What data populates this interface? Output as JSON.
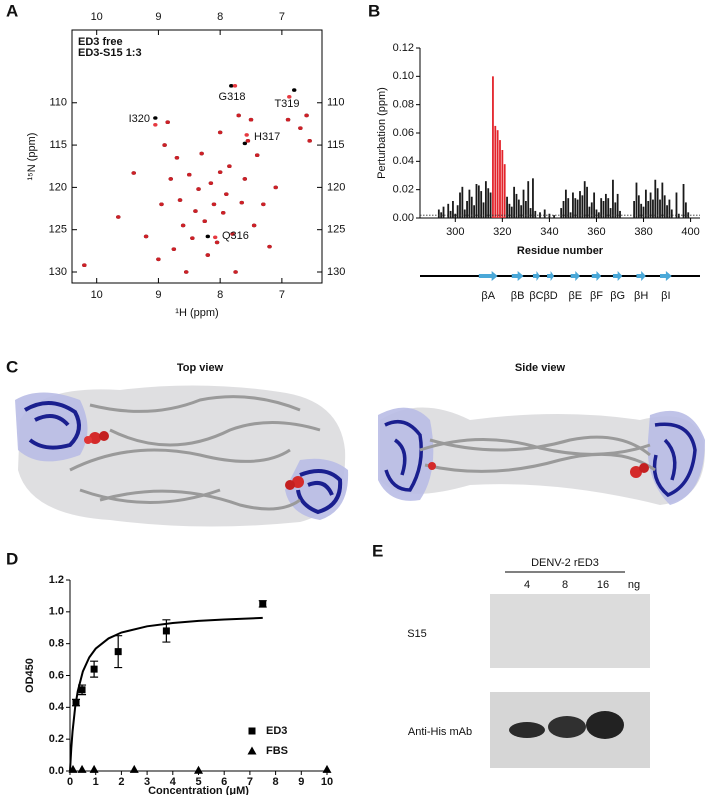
{
  "panel_labels": [
    "A",
    "B",
    "C",
    "D",
    "E"
  ],
  "chart_data": [
    {
      "type": "scatter",
      "xlabel": "¹H (ppm)",
      "ylabel": "¹⁵N (ppm)",
      "xlim": [
        10.4,
        6.35
      ],
      "ylim": [
        131.3,
        101.4
      ],
      "xticks": [
        10,
        9,
        8,
        7
      ],
      "yticks": [
        110,
        115,
        120,
        125,
        130
      ],
      "series": [
        {
          "name": "ED3 free",
          "color": "#000000",
          "x": [
            10.2,
            9.65,
            9.4,
            9.2,
            9.0,
            8.95,
            8.85,
            8.8,
            8.75,
            8.7,
            8.65,
            8.6,
            8.55,
            8.5,
            8.45,
            8.4,
            8.35,
            8.3,
            8.25,
            8.2,
            8.15,
            8.1,
            8.05,
            8.0,
            7.95,
            7.9,
            7.85,
            7.82,
            7.8,
            7.75,
            7.7,
            7.65,
            7.6,
            7.55,
            7.5,
            7.45,
            7.4,
            7.3,
            7.2,
            7.1,
            6.9,
            6.8,
            6.7,
            6.6,
            6.55,
            9.05,
            8.9,
            8.2,
            7.6,
            8.0
          ],
          "values": [
            129.2,
            123.5,
            118.3,
            125.8,
            128.5,
            122.0,
            112.3,
            119.0,
            127.3,
            116.5,
            121.5,
            124.5,
            130.0,
            118.5,
            126.0,
            122.8,
            120.2,
            116.0,
            124.0,
            128.0,
            119.5,
            122.0,
            126.5,
            118.2,
            123.0,
            120.8,
            117.5,
            108.0,
            125.5,
            130.0,
            111.5,
            121.8,
            119.0,
            114.5,
            112.0,
            124.5,
            116.2,
            122.0,
            127.0,
            120.0,
            112.0,
            108.5,
            113.0,
            111.5,
            114.5,
            111.8,
            115.0,
            125.8,
            114.8,
            113.5
          ]
        },
        {
          "name": "ED3-S15 1:3",
          "color": "#e3242b",
          "x": [
            10.2,
            9.65,
            9.4,
            9.2,
            9.0,
            8.95,
            8.85,
            8.8,
            8.75,
            8.7,
            8.65,
            8.6,
            8.55,
            8.5,
            8.45,
            8.4,
            8.35,
            8.3,
            8.25,
            8.2,
            8.15,
            8.1,
            8.05,
            8.0,
            7.95,
            7.9,
            7.85,
            7.76,
            7.8,
            7.75,
            7.7,
            7.65,
            7.6,
            7.55,
            7.5,
            7.45,
            7.4,
            7.3,
            7.2,
            7.1,
            6.9,
            6.88,
            6.7,
            6.6,
            6.55,
            9.05,
            8.9,
            8.08,
            7.57,
            8.0
          ],
          "values": [
            129.2,
            123.5,
            118.3,
            125.8,
            128.5,
            122.0,
            112.3,
            119.0,
            127.3,
            116.5,
            121.5,
            124.5,
            130.0,
            118.5,
            126.0,
            122.8,
            120.2,
            116.0,
            124.0,
            128.0,
            119.5,
            122.0,
            126.5,
            118.2,
            123.0,
            120.8,
            117.5,
            108.0,
            125.5,
            130.0,
            111.5,
            121.8,
            119.0,
            114.5,
            112.0,
            124.5,
            116.2,
            122.0,
            127.0,
            120.0,
            112.0,
            109.3,
            113.0,
            111.5,
            114.5,
            112.6,
            115.0,
            125.9,
            113.8,
            113.5
          ]
        }
      ],
      "annotations": [
        "G318",
        "T319",
        "I320",
        "H317",
        "Q316"
      ]
    },
    {
      "type": "bar",
      "xlabel": "Residue number",
      "ylabel": "Perturbation (ppm)",
      "xlim": [
        285,
        404
      ],
      "ylim": [
        0,
        0.12
      ],
      "xticks": [
        300,
        320,
        340,
        360,
        380,
        400
      ],
      "yticks": [
        {
          "value": 0,
          "label": "0.00"
        },
        {
          "value": 0.02,
          "label": "0.02"
        },
        {
          "value": 0.04,
          "label": "0.04"
        },
        {
          "value": 0.06,
          "label": "0.06"
        },
        {
          "value": 0.08,
          "label": "0.08"
        },
        {
          "value": 0.1,
          "label": "0.10"
        },
        {
          "value": 0.12,
          "label": "0.12"
        }
      ],
      "reference_line": 0.002,
      "series": [
        {
          "color": "#1a1a1a",
          "x": [
            293,
            294,
            295,
            297,
            298,
            299,
            300,
            301,
            302,
            303,
            304,
            305,
            306,
            307,
            308,
            309,
            310,
            311,
            312,
            313,
            314,
            315,
            322,
            323,
            324,
            325,
            326,
            327,
            328,
            329,
            330,
            331,
            332,
            333,
            334,
            336,
            338,
            340,
            342,
            345,
            346,
            347,
            348,
            349,
            350,
            351,
            352,
            353,
            354,
            355,
            356,
            357,
            358,
            359,
            360,
            361,
            362,
            363,
            364,
            365,
            366,
            367,
            368,
            369,
            370,
            376,
            377,
            378,
            379,
            380,
            381,
            382,
            383,
            384,
            385,
            386,
            387,
            388,
            389,
            390,
            391,
            392,
            394,
            395,
            397,
            398,
            399
          ],
          "values": [
            0.006,
            0.004,
            0.008,
            0.01,
            0.005,
            0.012,
            0.003,
            0.009,
            0.018,
            0.022,
            0.006,
            0.012,
            0.02,
            0.015,
            0.009,
            0.024,
            0.023,
            0.019,
            0.011,
            0.026,
            0.021,
            0.018,
            0.015,
            0.01,
            0.008,
            0.022,
            0.017,
            0.013,
            0.009,
            0.02,
            0.012,
            0.026,
            0.007,
            0.028,
            0.005,
            0.004,
            0.006,
            0.003,
            0.002,
            0.007,
            0.012,
            0.02,
            0.014,
            0.004,
            0.018,
            0.014,
            0.013,
            0.019,
            0.016,
            0.026,
            0.022,
            0.008,
            0.011,
            0.018,
            0.006,
            0.004,
            0.014,
            0.012,
            0.017,
            0.014,
            0.007,
            0.027,
            0.011,
            0.017,
            0.005,
            0.012,
            0.025,
            0.016,
            0.01,
            0.008,
            0.02,
            0.012,
            0.018,
            0.013,
            0.027,
            0.021,
            0.013,
            0.025,
            0.016,
            0.009,
            0.013,
            0.006,
            0.018,
            0.003,
            0.024,
            0.011,
            0.004
          ]
        },
        {
          "color": "#e3242b",
          "x": [
            316,
            317,
            318,
            319,
            320,
            321
          ],
          "values": [
            0.1,
            0.065,
            0.062,
            0.055,
            0.048,
            0.038
          ]
        }
      ],
      "strands": [
        {
          "name": "βA",
          "start": 310,
          "end": 318
        },
        {
          "name": "βB",
          "start": 324,
          "end": 329
        },
        {
          "name": "βC",
          "start": 333,
          "end": 336
        },
        {
          "name": "βD",
          "start": 339,
          "end": 342
        },
        {
          "name": "βE",
          "start": 349,
          "end": 353
        },
        {
          "name": "βF",
          "start": 358,
          "end": 362
        },
        {
          "name": "βG",
          "start": 367,
          "end": 371
        },
        {
          "name": "βH",
          "start": 377,
          "end": 381
        },
        {
          "name": "βI",
          "start": 387,
          "end": 392
        }
      ]
    },
    {
      "type": "line",
      "xlabel": "Concentration (μM)",
      "ylabel": "OD450",
      "xlim": [
        0,
        10
      ],
      "ylim": [
        0,
        1.2
      ],
      "xticks": [
        0,
        1,
        2,
        3,
        4,
        5,
        6,
        7,
        8,
        9,
        10
      ],
      "yticks": [
        {
          "value": 0,
          "label": "0.0"
        },
        0.2,
        0.4,
        0.6,
        0.8,
        {
          "value": 1,
          "label": "1.0"
        },
        1.2
      ],
      "legend": "lower right",
      "series": [
        {
          "name": "ED3",
          "marker": "square",
          "color": "#000000",
          "x": [
            0.234,
            0.469,
            0.938,
            1.875,
            3.75,
            7.5
          ],
          "values": [
            0.43,
            0.51,
            0.64,
            0.75,
            0.88,
            1.05
          ],
          "errors": [
            0.02,
            0.03,
            0.05,
            0.1,
            0.07,
            0.02
          ]
        },
        {
          "name": "FBS",
          "marker": "triangle",
          "color": "#000000",
          "x": [
            0.117,
            0.469,
            0.938,
            2.5,
            5,
            10
          ],
          "values": [
            0.01,
            0.01,
            0.01,
            0.01,
            0.005,
            0.01
          ]
        }
      ],
      "fit": {
        "x": [
          0,
          0.05,
          0.1,
          0.2,
          0.3,
          0.5,
          0.75,
          1,
          1.5,
          2,
          3,
          4,
          5,
          6,
          7.5
        ],
        "values": [
          0,
          0.143,
          0.25,
          0.4,
          0.5,
          0.625,
          0.714,
          0.769,
          0.833,
          0.87,
          0.909,
          0.93,
          0.943,
          0.952,
          0.962
        ]
      }
    }
  ],
  "panel_c": {
    "views": [
      "Top view",
      "Side view"
    ]
  },
  "panel_e": {
    "header": "DENV-2 rED3",
    "lanes": [
      "4",
      "8",
      "16"
    ],
    "unit": "ng",
    "rows": [
      "S15",
      "Anti-His mAb"
    ]
  }
}
